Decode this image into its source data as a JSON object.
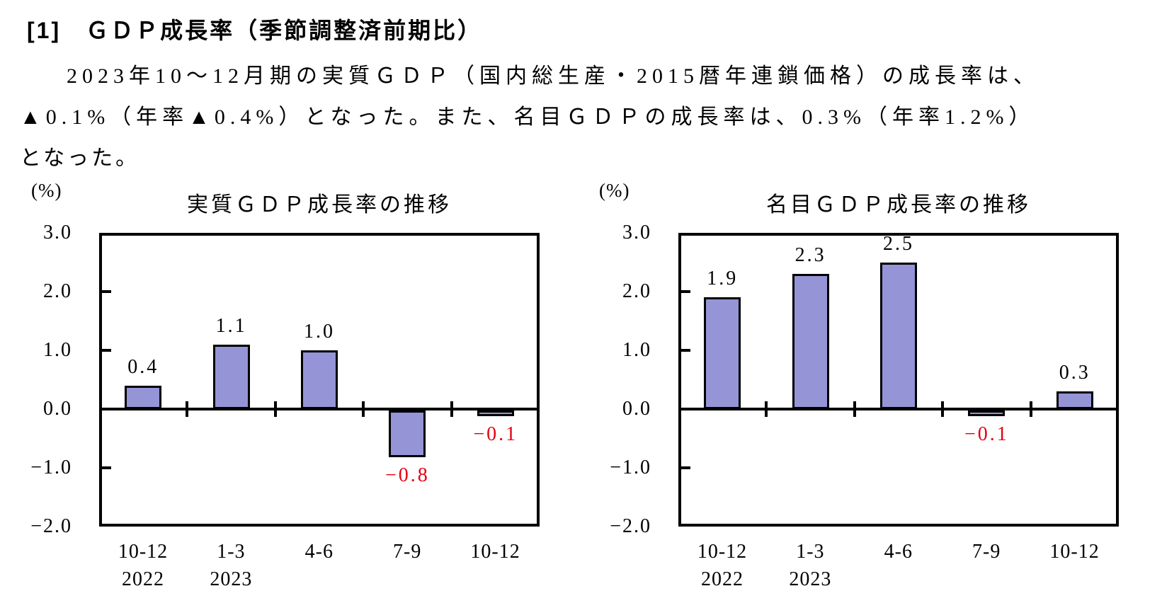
{
  "page": {
    "heading": "[1]　ＧＤＰ成長率（季節調整済前期比）",
    "paragraph_lines": [
      "2023年10～12月期の実質ＧＤＰ（国内総生産・2015暦年連鎖価格）の成長率は、",
      "▲0.1%（年率▲0.4%）となった。また、名目ＧＤＰの成長率は、0.3%（年率1.2%）",
      "となった。"
    ]
  },
  "colors": {
    "bar_fill": "#9494d6",
    "bar_border": "#000000",
    "axis": "#000000",
    "text": "#000000",
    "negative_label": "#e60012"
  },
  "chart_data": [
    {
      "type": "bar",
      "title": "実質ＧＤＰ成長率の推移",
      "unit_label": "(%)",
      "categories": [
        "10-12",
        "1-3",
        "4-6",
        "7-9",
        "10-12"
      ],
      "category_years": [
        "2022",
        "2023",
        "",
        "",
        ""
      ],
      "values": [
        0.4,
        1.1,
        1.0,
        -0.8,
        -0.1
      ],
      "labels": [
        "0.4",
        "1.1",
        "1.0",
        "−0.8",
        "−0.1"
      ],
      "ylim": [
        -2.0,
        3.0
      ],
      "yticks": [
        3.0,
        2.0,
        1.0,
        0.0,
        -1.0,
        -2.0
      ],
      "ytick_labels": [
        "3.0",
        "2.0",
        "1.0",
        "0.0",
        "−1.0",
        "−2.0"
      ],
      "xlabel": "",
      "ylabel": "(%)",
      "grid": "off",
      "legend": "none"
    },
    {
      "type": "bar",
      "title": "名目ＧＤＰ成長率の推移",
      "unit_label": "(%)",
      "categories": [
        "10-12",
        "1-3",
        "4-6",
        "7-9",
        "10-12"
      ],
      "category_years": [
        "2022",
        "2023",
        "",
        "",
        ""
      ],
      "values": [
        1.9,
        2.3,
        2.5,
        -0.1,
        0.3
      ],
      "labels": [
        "1.9",
        "2.3",
        "2.5",
        "−0.1",
        "0.3"
      ],
      "ylim": [
        -2.0,
        3.0
      ],
      "yticks": [
        3.0,
        2.0,
        1.0,
        0.0,
        -1.0,
        -2.0
      ],
      "ytick_labels": [
        "3.0",
        "2.0",
        "1.0",
        "0.0",
        "−1.0",
        "−2.0"
      ],
      "xlabel": "",
      "ylabel": "(%)",
      "grid": "off",
      "legend": "none"
    }
  ]
}
